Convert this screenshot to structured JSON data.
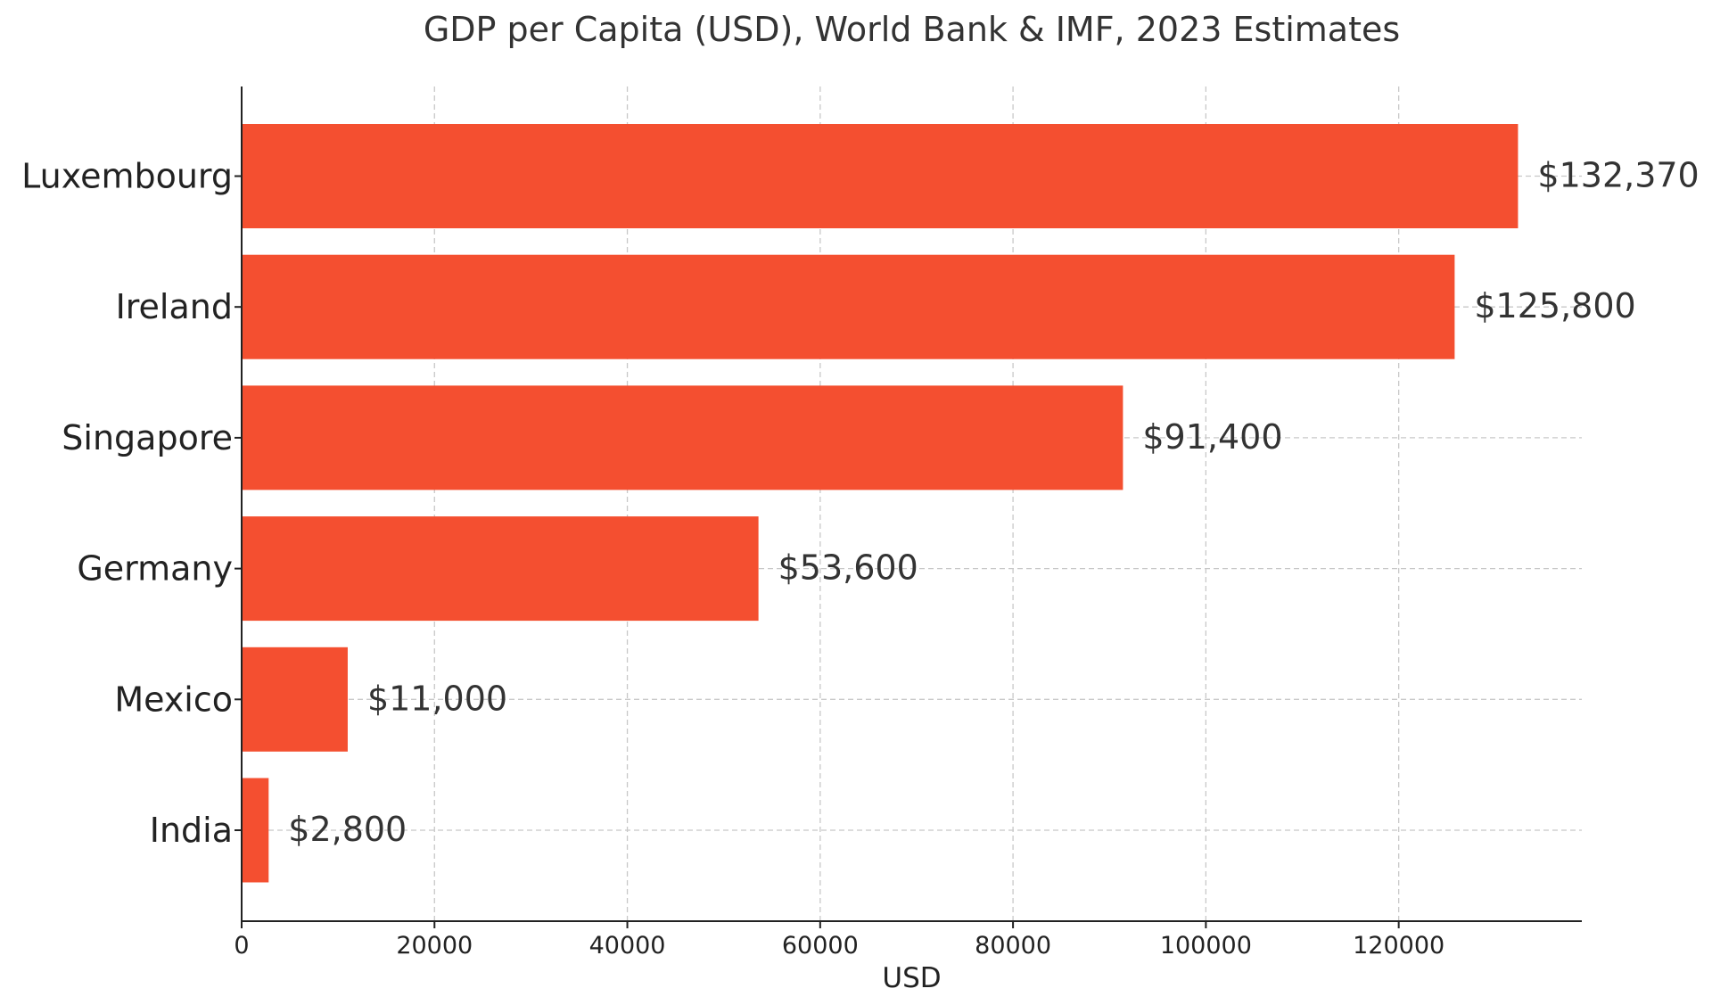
{
  "chart_data": {
    "type": "bar",
    "orientation": "horizontal",
    "title": "GDP per Capita (USD), World Bank & IMF, 2023 Estimates",
    "xlabel": "USD",
    "ylabel": "",
    "categories": [
      "Luxembourg",
      "Ireland",
      "Singapore",
      "Germany",
      "Mexico",
      "India"
    ],
    "values": [
      132370,
      125800,
      91400,
      53600,
      11000,
      2800
    ],
    "value_labels": [
      "$132,370",
      "$125,800",
      "$91,400",
      "$53,600",
      "$11,000",
      "$2,800"
    ],
    "xlim": [
      0,
      138989
    ],
    "x_ticks": [
      0,
      20000,
      40000,
      60000,
      80000,
      100000,
      120000
    ],
    "x_tick_labels": [
      "0",
      "20000",
      "40000",
      "60000",
      "80000",
      "100000",
      "120000"
    ],
    "grid": true,
    "bar_color": "#f44f30"
  }
}
